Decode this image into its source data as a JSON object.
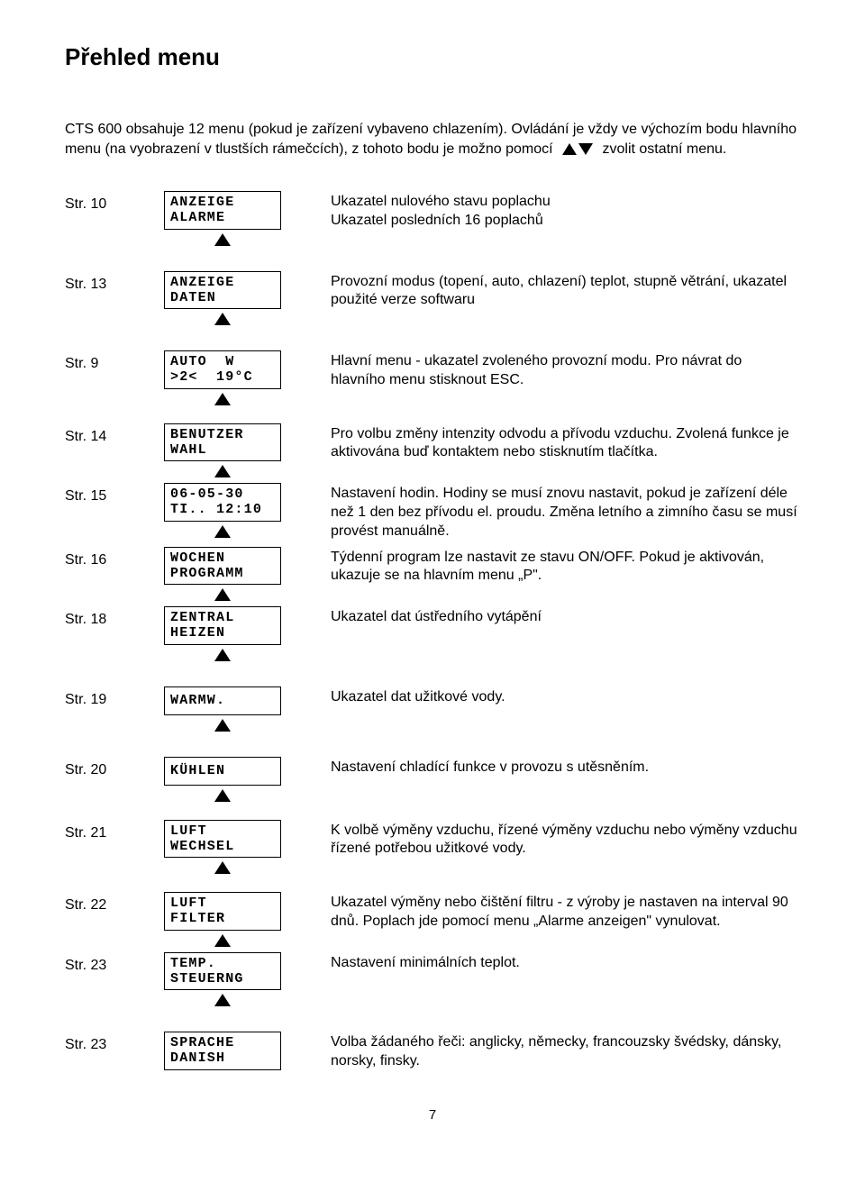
{
  "title": "Přehled menu",
  "intro1": "CTS 600 obsahuje 12 menu (pokud je zařízení vybaveno chlazením). Ovládání je vždy ve výchozím bodu hlavního menu (na vyobrazení v tlustších rámečcích), z tohoto bodu je možno pomocí",
  "intro2": "zvolit ostatní menu.",
  "rows": [
    {
      "page": "Str. 10",
      "disp": "ANZEIGE\nALARME",
      "desc": "Ukazatel nulového stavu poplachu\nUkazatel posledních 16 poplachů",
      "arrow": true,
      "gap": "lg"
    },
    {
      "page": "Str. 13",
      "disp": "ANZEIGE\nDATEN",
      "desc": "Provozní modus (topení, auto, chlazení) teplot, stupně větrání, ukazatel použité verze softwaru",
      "arrow": true,
      "gap": "lg"
    },
    {
      "page": "Str. 9",
      "disp": "AUTO  W\n>2<  19°C",
      "desc": "Hlavní menu - ukazatel zvoleného provozní modu. Pro návrat do hlavního menu stisknout ESC.",
      "arrow": true,
      "gap": "md"
    },
    {
      "page": "Str. 14",
      "disp": "BENUTZER\nWAHL",
      "desc": "Pro volbu změny intenzity odvodu a přívodu vzduchu. Zvolená funkce je aktivována buď kontaktem nebo stisknutím tlačítka.",
      "arrow": true,
      "gap": "sm"
    },
    {
      "page": "Str. 15",
      "disp": "06-05-30\nTI.. 12:10",
      "desc": "Nastavení hodin. Hodiny se musí znovu nastavit, pokud je zařízení déle než 1 den bez přívodu el. proudu. Změna letního a zimního času se musí provést manuálně.",
      "arrow": true,
      "gap": "sm"
    },
    {
      "page": "Str. 16",
      "disp": "WOCHEN\nPROGRAMM",
      "desc": "Týdenní program lze nastavit ze stavu ON/OFF. Pokud je aktivován, ukazuje se na hlavním menu „P\".",
      "arrow": true,
      "gap": "sm"
    },
    {
      "page": "Str. 18",
      "disp": "ZENTRAL\nHEIZEN",
      "desc": "Ukazatel dat ústředního vytápění",
      "arrow": true,
      "gap": "lg"
    },
    {
      "page": "Str. 19",
      "disp": "WARMW.",
      "desc": "Ukazatel dat užitkové vody.",
      "arrow": true,
      "gap": "lg",
      "single": true
    },
    {
      "page": "Str. 20",
      "disp": "KÜHLEN",
      "desc": "Nastavení chladící funkce v provozu s utěsněním.",
      "arrow": true,
      "gap": "md",
      "single": true
    },
    {
      "page": "Str. 21",
      "disp": "LUFT\nWECHSEL",
      "desc": "K volbě výměny vzduchu, řízené výměny vzduchu nebo výměny vzduchu řízené potřebou užitkové vody.",
      "arrow": true,
      "gap": "md"
    },
    {
      "page": "Str. 22",
      "disp": "LUFT\nFILTER",
      "desc": "Ukazatel výměny nebo čištění filtru - z výroby je nastaven na interval 90 dnů. Poplach jde pomocí menu „Alarme anzeigen\" vynulovat.",
      "arrow": true,
      "gap": "sm"
    },
    {
      "page": "Str. 23",
      "disp": "TEMP.\nSTEUERNG",
      "desc": "Nastavení minimálních teplot.",
      "arrow": true,
      "gap": "lg"
    },
    {
      "page": "Str. 23",
      "disp": "SPRACHE\nDANISH",
      "desc": "Volba žádaného řeči: anglicky, německy, francouzsky švédsky, dánsky, norsky, finsky.",
      "arrow": false,
      "gap": "sm"
    }
  ],
  "pagenum": "7",
  "colors": {
    "text": "#000000",
    "bg": "#ffffff"
  }
}
